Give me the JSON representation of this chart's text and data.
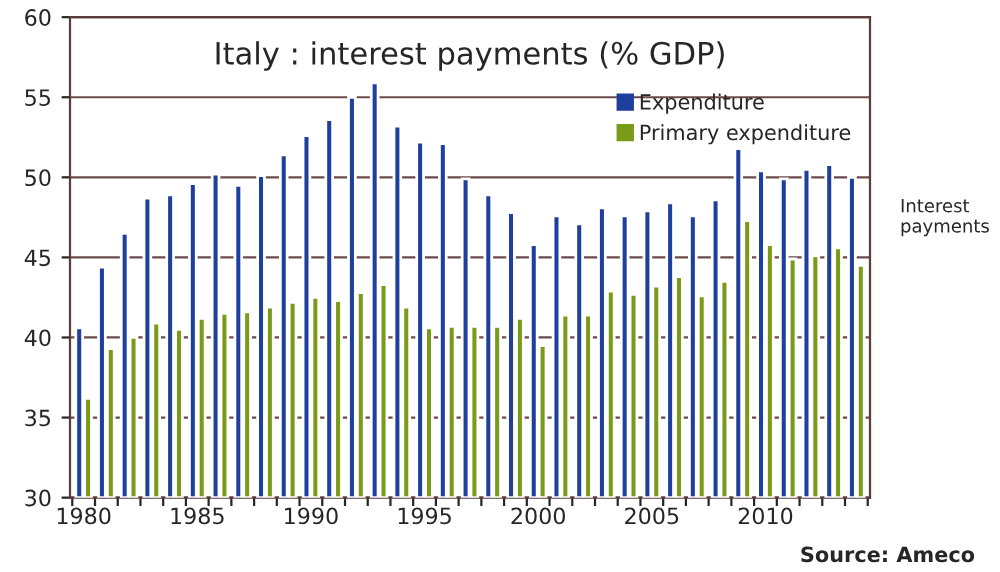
{
  "chart_data": {
    "type": "bar",
    "title": "Italy : interest payments (% GDP)",
    "categories": [
      "1980",
      null,
      null,
      null,
      null,
      "1985",
      null,
      null,
      null,
      null,
      "1990",
      null,
      null,
      null,
      null,
      "1995",
      null,
      null,
      null,
      null,
      "2000",
      null,
      null,
      null,
      null,
      "2005",
      null,
      null,
      null,
      null,
      "2010",
      null,
      null,
      null,
      null
    ],
    "series": [
      {
        "name": "Expenditure",
        "color": "#1f3f9f",
        "values": [
          40.6,
          44.4,
          46.5,
          48.7,
          48.9,
          49.6,
          50.2,
          49.5,
          50.1,
          51.4,
          52.6,
          53.6,
          55.0,
          55.9,
          53.2,
          52.2,
          52.1,
          49.9,
          48.9,
          47.8,
          45.8,
          47.6,
          47.1,
          48.1,
          47.6,
          47.9,
          48.4,
          47.6,
          48.6,
          51.8,
          50.4,
          49.9,
          50.5,
          50.8,
          50.0
        ]
      },
      {
        "name": "Primary expenditure",
        "color": "#7a9a1a",
        "values": [
          36.2,
          39.3,
          40.0,
          40.9,
          40.5,
          41.2,
          41.5,
          41.6,
          41.9,
          42.2,
          42.5,
          42.3,
          42.8,
          43.3,
          41.9,
          40.6,
          40.7,
          40.7,
          40.7,
          41.2,
          39.5,
          41.4,
          41.4,
          42.9,
          42.7,
          43.2,
          43.8,
          42.6,
          43.5,
          47.3,
          45.8,
          44.9,
          45.1,
          45.6,
          44.5
        ]
      }
    ],
    "ylim": [
      30,
      60
    ],
    "yticks": [
      30,
      35,
      40,
      45,
      50,
      55,
      60
    ],
    "grid": "y",
    "legend": "top right",
    "annotations": [
      "Interest payments",
      "Source: Ameco"
    ]
  }
}
